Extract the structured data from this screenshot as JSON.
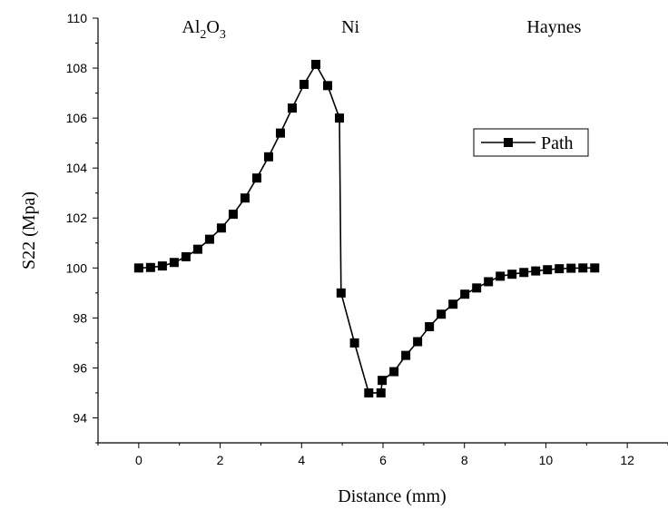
{
  "chart_data": {
    "type": "line",
    "xlabel": "Distance (mm)",
    "ylabel": "S22 (Mpa)",
    "xlim": [
      -1,
      13
    ],
    "ylim": [
      93,
      110
    ],
    "xticks": [
      0,
      2,
      4,
      6,
      8,
      10,
      12
    ],
    "yticks": [
      94,
      96,
      98,
      100,
      102,
      104,
      106,
      108,
      110
    ],
    "grid": false,
    "legend_position": "top-right",
    "region_labels": [
      {
        "base": "Al",
        "sub1": "2",
        "mid": "O",
        "sub2": "3",
        "x": 1.6
      },
      {
        "base": "Ni",
        "x": 5.2
      },
      {
        "base": "Haynes",
        "x": 10.2
      }
    ],
    "series": [
      {
        "name": "Path",
        "marker": "square",
        "color": "#000000",
        "x": [
          0,
          0.29,
          0.58,
          0.87,
          1.16,
          1.45,
          1.74,
          2.03,
          2.32,
          2.61,
          2.9,
          3.19,
          3.48,
          3.77,
          4.06,
          4.35,
          4.64,
          4.93,
          4.97,
          5.3,
          5.65,
          5.95,
          5.98,
          6.27,
          6.56,
          6.85,
          7.14,
          7.43,
          7.72,
          8.01,
          8.3,
          8.59,
          8.88,
          9.17,
          9.46,
          9.75,
          10.04,
          10.33,
          10.62,
          10.91,
          11.2
        ],
        "values": [
          100.0,
          100.02,
          100.08,
          100.22,
          100.45,
          100.75,
          101.15,
          101.6,
          102.15,
          102.8,
          103.6,
          104.45,
          105.4,
          106.4,
          107.35,
          108.15,
          107.3,
          106.0,
          99.0,
          97.0,
          95.0,
          95.0,
          95.5,
          95.85,
          96.5,
          97.05,
          97.65,
          98.15,
          98.55,
          98.95,
          99.2,
          99.45,
          99.67,
          99.75,
          99.82,
          99.88,
          99.93,
          99.97,
          99.99,
          100.0,
          100.0
        ]
      }
    ]
  }
}
